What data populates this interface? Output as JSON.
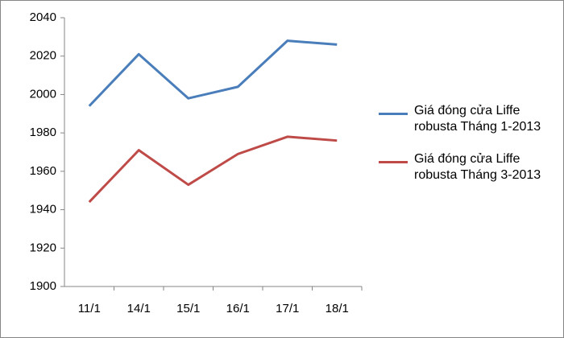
{
  "chart_data": {
    "type": "line",
    "categories": [
      "11/1",
      "14/1",
      "15/1",
      "16/1",
      "17/1",
      "18/1"
    ],
    "series": [
      {
        "name": "Giá đóng cửa Liffe robusta Tháng 1-2013",
        "color": "#4a7ebb",
        "values": [
          1994,
          2021,
          1998,
          2004,
          2028,
          2026
        ]
      },
      {
        "name": "Giá đóng cửa Liffe robusta Tháng 3-2013",
        "color": "#be4b48",
        "values": [
          1944,
          1971,
          1953,
          1969,
          1978,
          1976
        ]
      }
    ],
    "ylim": [
      1900,
      2040
    ],
    "yticks": [
      1900,
      1920,
      1940,
      1960,
      1980,
      2000,
      2020,
      2040
    ],
    "grid": false,
    "legend": "right"
  }
}
